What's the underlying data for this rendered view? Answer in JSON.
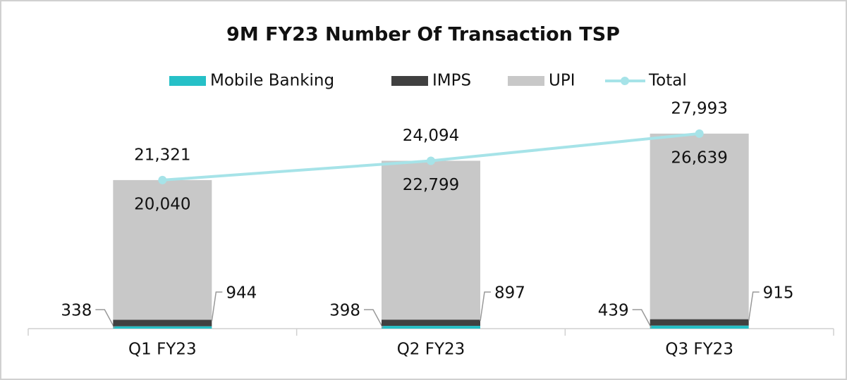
{
  "chart_data": {
    "type": "bar",
    "stacked": true,
    "title": "9M FY23 Number Of Transaction TSP",
    "categories": [
      "Q1 FY23",
      "Q2 FY23",
      "Q3 FY23"
    ],
    "series": [
      {
        "name": "Mobile Banking",
        "type": "bar",
        "color": "#26c0c7",
        "values": [
          338,
          398,
          439
        ],
        "value_labels": [
          "338",
          "398",
          "439"
        ]
      },
      {
        "name": "IMPS",
        "type": "bar",
        "color": "#404040",
        "values": [
          944,
          897,
          915
        ],
        "value_labels": [
          "944",
          "897",
          "915"
        ]
      },
      {
        "name": "UPI",
        "type": "bar",
        "color": "#c8c8c8",
        "values": [
          20040,
          22799,
          26639
        ],
        "value_labels": [
          "20,040",
          "22,799",
          "26,639"
        ]
      },
      {
        "name": "Total",
        "type": "line",
        "color": "#a6e3e8",
        "values": [
          21321,
          24094,
          27993
        ],
        "value_labels": [
          "21,321",
          "24,094",
          "27,993"
        ]
      }
    ],
    "legend": "top"
  }
}
